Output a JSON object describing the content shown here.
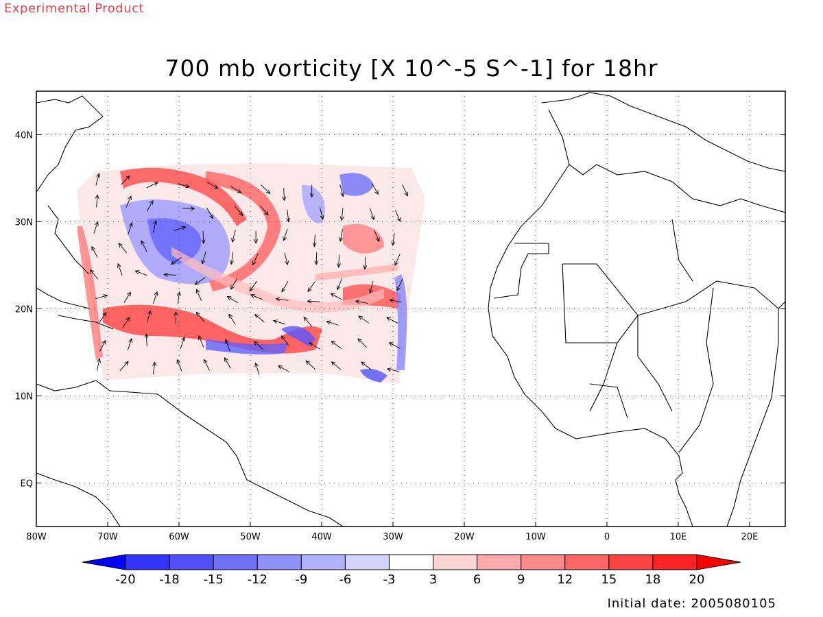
{
  "header": {
    "experimental": "Experimental Product",
    "title": "700 mb vorticity [X 10^-5 S^-1] for 18hr"
  },
  "map": {
    "lon_range": [
      -80,
      25
    ],
    "lat_range": [
      -5,
      45
    ],
    "lon_ticks": [
      {
        "value": -80,
        "label": "80W"
      },
      {
        "value": -70,
        "label": "70W"
      },
      {
        "value": -60,
        "label": "60W"
      },
      {
        "value": -50,
        "label": "50W"
      },
      {
        "value": -40,
        "label": "40W"
      },
      {
        "value": -30,
        "label": "30W"
      },
      {
        "value": -20,
        "label": "20W"
      },
      {
        "value": -10,
        "label": "10W"
      },
      {
        "value": 0,
        "label": "0"
      },
      {
        "value": 10,
        "label": "10E"
      },
      {
        "value": 20,
        "label": "20E"
      }
    ],
    "lat_ticks": [
      {
        "value": 0,
        "label": "EQ"
      },
      {
        "value": 10,
        "label": "10N"
      },
      {
        "value": 20,
        "label": "20N"
      },
      {
        "value": 30,
        "label": "30N"
      },
      {
        "value": 40,
        "label": "40N"
      }
    ],
    "grid": true
  },
  "colorbar": {
    "labels": [
      "-20",
      "-18",
      "-15",
      "-12",
      "-9",
      "-6",
      "-3",
      "3",
      "6",
      "9",
      "12",
      "15",
      "18",
      "20"
    ],
    "colors": [
      "#0000ff",
      "#3333ff",
      "#5050ff",
      "#7070ff",
      "#9090ff",
      "#b0b0ff",
      "#d4d4ff",
      "#ffffff",
      "#ffd4d4",
      "#ffaaaa",
      "#ff8888",
      "#ff6666",
      "#ff4444",
      "#ff2222",
      "#ff0000"
    ]
  },
  "footer": {
    "initial_date": "Initial date: 2005080105"
  },
  "colors": {
    "experimental_text": "#e8434a",
    "coastline": "#000000"
  }
}
